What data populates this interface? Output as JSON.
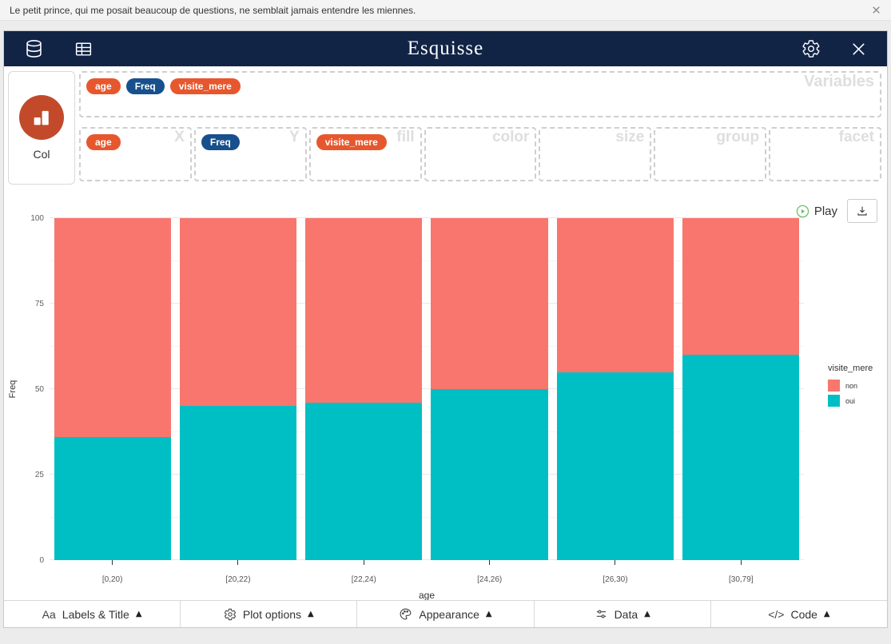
{
  "notification": {
    "text": "Le petit prince, qui me posait beaucoup de questions, ne semblait jamais entendre les miennes."
  },
  "header": {
    "title": "Esquisse",
    "left_icons": [
      "database-icon",
      "table-icon"
    ],
    "right_icons": [
      "gear-icon",
      "close-icon"
    ]
  },
  "chart_type": {
    "label": "Col",
    "icon": "col-chart-icon"
  },
  "variables_zone": {
    "label": "Variables",
    "pills": [
      {
        "name": "age",
        "type": "discrete"
      },
      {
        "name": "Freq",
        "type": "continuous"
      },
      {
        "name": "visite_mere",
        "type": "discrete"
      }
    ]
  },
  "aes_zones": [
    {
      "label": "X",
      "pill": {
        "name": "age",
        "type": "discrete"
      }
    },
    {
      "label": "Y",
      "pill": {
        "name": "Freq",
        "type": "continuous"
      }
    },
    {
      "label": "fill",
      "pill": {
        "name": "visite_mere",
        "type": "discrete"
      }
    },
    {
      "label": "color",
      "pill": null
    },
    {
      "label": "size",
      "pill": null
    },
    {
      "label": "group",
      "pill": null
    },
    {
      "label": "facet",
      "pill": null
    }
  ],
  "toolbar": {
    "play_label": "Play",
    "play_icon": "play-circle-icon",
    "download_icon": "download-icon"
  },
  "chart_data": {
    "type": "bar",
    "stacked": true,
    "categories": [
      "[0,20)",
      "[20,22)",
      "[22,24)",
      "[24,26)",
      "[26,30)",
      "[30,79]"
    ],
    "series": [
      {
        "name": "oui",
        "color": "#00BFC4",
        "values": [
          36,
          45,
          46,
          50,
          55,
          60
        ]
      },
      {
        "name": "non",
        "color": "#F8766D",
        "values": [
          64,
          55,
          54,
          50,
          45,
          40
        ]
      }
    ],
    "title": "",
    "xlabel": "age",
    "ylabel": "Freq",
    "ylim": [
      0,
      100
    ],
    "yticks": [
      0,
      25,
      50,
      75,
      100
    ],
    "grid": true,
    "legend_title": "visite_mere",
    "legend_position": "right",
    "legend_entries": [
      {
        "label": "non",
        "color": "#F8766D"
      },
      {
        "label": "oui",
        "color": "#00BFC4"
      }
    ]
  },
  "bottom_bar": [
    {
      "icon": "text-icon",
      "label": "Labels & Title",
      "caret": "up"
    },
    {
      "icon": "gear-icon",
      "label": "Plot options",
      "caret": "up"
    },
    {
      "icon": "palette-icon",
      "label": "Appearance",
      "caret": "up"
    },
    {
      "icon": "sliders-icon",
      "label": "Data",
      "caret": "up"
    },
    {
      "icon": "code-icon",
      "label": "Code",
      "caret": "up"
    }
  ],
  "colors": {
    "header_bg": "#112446",
    "discrete_pill": "#E7572D",
    "continuous_pill": "#17508C",
    "col_icon_bg": "#C24A2B",
    "bar_non": "#F8766D",
    "bar_oui": "#00BFC4",
    "play_green": "#6DBE6D"
  }
}
